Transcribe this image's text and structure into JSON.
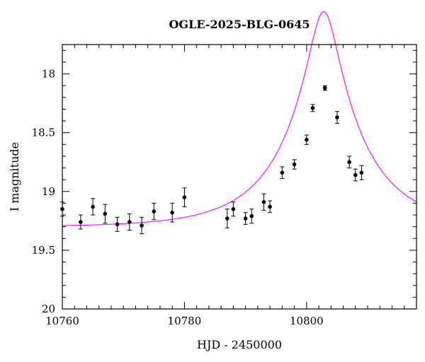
{
  "chart_data": {
    "type": "scatter",
    "title": "OGLE-2025-BLG-0645",
    "xlabel": "HJD - 2450000",
    "ylabel": "I magnitude",
    "xlim": [
      10760,
      10818
    ],
    "ylim": [
      20,
      17.75
    ],
    "y_inverted": true,
    "xticks": [
      10760,
      10780,
      10800
    ],
    "yticks": [
      18,
      18.5,
      19,
      19.5,
      20
    ],
    "ytick_labels": [
      "18",
      "18.5",
      "19",
      "19.5",
      "20"
    ],
    "grid": false,
    "legend": "none",
    "colors": {
      "points": "#000000",
      "model": "#ff00ff"
    },
    "series": [
      {
        "type": "points_with_errorbars",
        "points": [
          {
            "x": 10760.0,
            "y": 19.15,
            "err": 0.06
          },
          {
            "x": 10763.0,
            "y": 19.26,
            "err": 0.06
          },
          {
            "x": 10765.0,
            "y": 19.13,
            "err": 0.07
          },
          {
            "x": 10767.0,
            "y": 19.19,
            "err": 0.08
          },
          {
            "x": 10769.0,
            "y": 19.28,
            "err": 0.06
          },
          {
            "x": 10771.0,
            "y": 19.26,
            "err": 0.07
          },
          {
            "x": 10773.0,
            "y": 19.29,
            "err": 0.07
          },
          {
            "x": 10775.0,
            "y": 19.17,
            "err": 0.07
          },
          {
            "x": 10778.0,
            "y": 19.18,
            "err": 0.08
          },
          {
            "x": 10780.0,
            "y": 19.05,
            "err": 0.08
          },
          {
            "x": 10787.0,
            "y": 19.23,
            "err": 0.08
          },
          {
            "x": 10788.0,
            "y": 19.15,
            "err": 0.06
          },
          {
            "x": 10790.0,
            "y": 19.23,
            "err": 0.05
          },
          {
            "x": 10791.0,
            "y": 19.21,
            "err": 0.06
          },
          {
            "x": 10793.0,
            "y": 19.09,
            "err": 0.07
          },
          {
            "x": 10794.0,
            "y": 19.13,
            "err": 0.05
          },
          {
            "x": 10796.0,
            "y": 18.84,
            "err": 0.05
          },
          {
            "x": 10798.0,
            "y": 18.77,
            "err": 0.04
          },
          {
            "x": 10800.0,
            "y": 18.56,
            "err": 0.04
          },
          {
            "x": 10801.0,
            "y": 18.29,
            "err": 0.03
          },
          {
            "x": 10803.0,
            "y": 18.12,
            "err": 0.02
          },
          {
            "x": 10805.0,
            "y": 18.37,
            "err": 0.05
          },
          {
            "x": 10807.0,
            "y": 18.75,
            "err": 0.05
          },
          {
            "x": 10808.0,
            "y": 18.86,
            "err": 0.05
          },
          {
            "x": 10809.0,
            "y": 18.84,
            "err": 0.06
          }
        ]
      },
      {
        "type": "model_curve",
        "model": {
          "t0": 10802.8,
          "tE": 12.8,
          "u0": 0.18,
          "baseline": 19.303,
          "fs": 0.955
        }
      }
    ]
  }
}
